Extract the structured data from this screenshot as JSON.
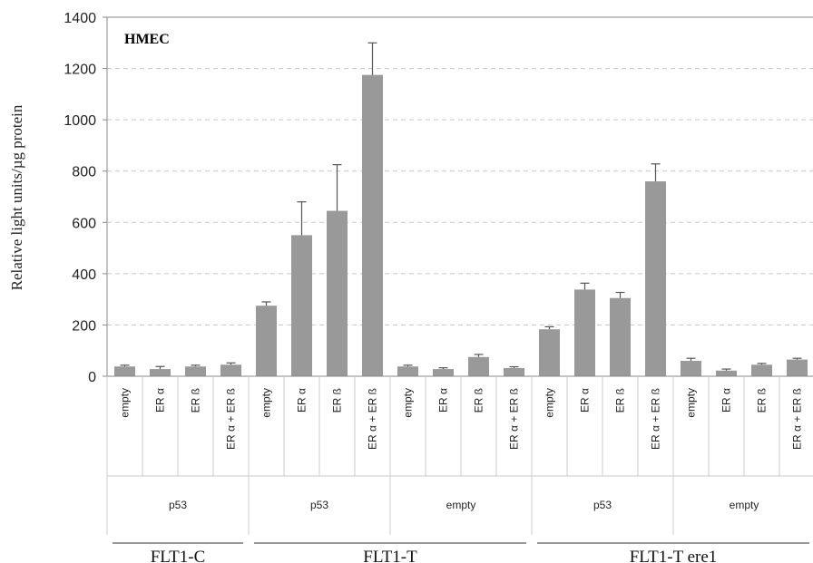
{
  "chart_data": {
    "type": "bar",
    "panel_label": "HMEC",
    "ylabel": "Relative light units/µg protein",
    "ylim": [
      0,
      1400
    ],
    "yticks": [
      0,
      200,
      400,
      600,
      800,
      1000,
      1200,
      1400
    ],
    "grid": "horizontal dashed",
    "bar_color": "#999999",
    "categories": [
      "empty",
      "ER α",
      "ER ß",
      "ER α + ER ß",
      "empty",
      "ER α",
      "ER ß",
      "ER α + ER ß",
      "empty",
      "ER α",
      "ER ß",
      "ER α + ER ß",
      "empty",
      "ER α",
      "ER ß",
      "ER α + ER ß",
      "empty",
      "ER α",
      "ER ß",
      "ER α + ER ß"
    ],
    "values": [
      38,
      28,
      38,
      45,
      275,
      550,
      645,
      1175,
      38,
      28,
      75,
      32,
      183,
      338,
      305,
      760,
      60,
      22,
      45,
      65
    ],
    "errors": [
      5,
      10,
      5,
      7,
      15,
      130,
      180,
      125,
      5,
      5,
      10,
      5,
      10,
      25,
      22,
      68,
      10,
      6,
      5,
      5
    ],
    "vector_groups": [
      {
        "label": "p53",
        "start": 0,
        "count": 4
      },
      {
        "label": "p53",
        "start": 4,
        "count": 4
      },
      {
        "label": "empty",
        "start": 8,
        "count": 4
      },
      {
        "label": "p53",
        "start": 12,
        "count": 4
      },
      {
        "label": "empty",
        "start": 16,
        "count": 4
      }
    ],
    "constructs": [
      {
        "label": "FLT1-C",
        "start": 0,
        "count": 4
      },
      {
        "label": "FLT1-T",
        "start": 4,
        "count": 8
      },
      {
        "label": "FLT1-T ere1",
        "start": 12,
        "count": 8
      }
    ]
  }
}
